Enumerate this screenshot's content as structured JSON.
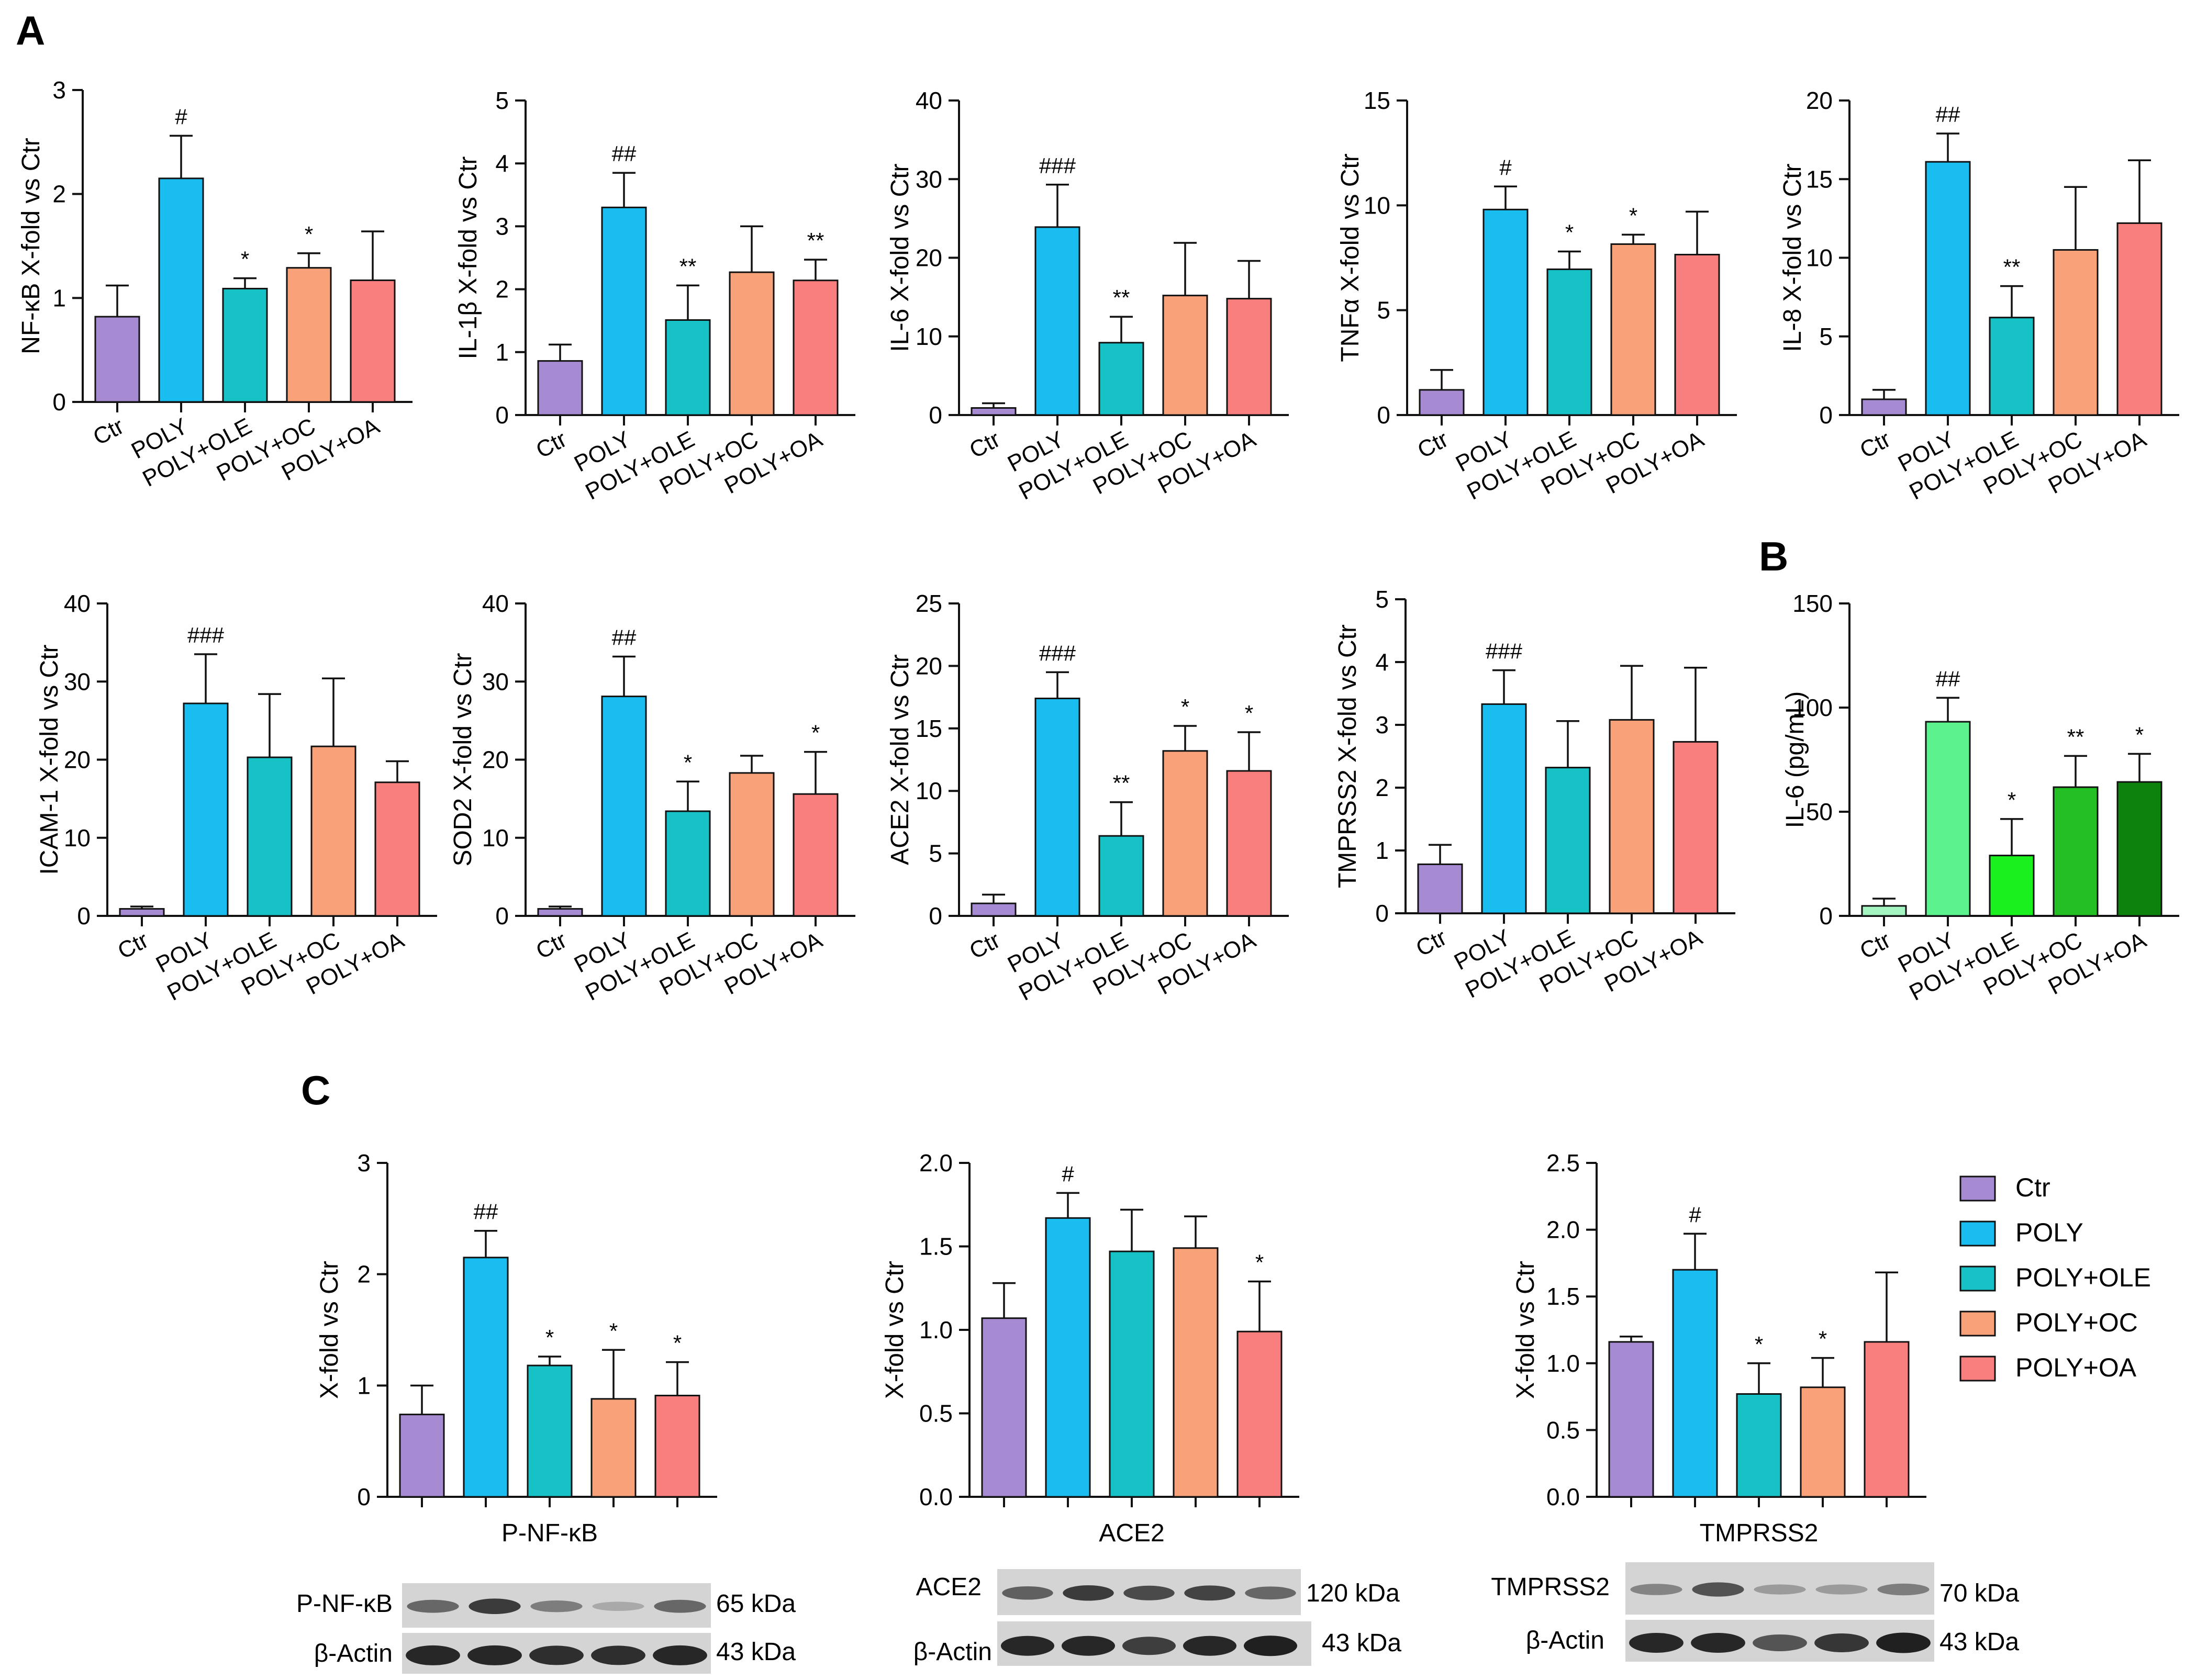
{
  "panel_labels": {
    "a": "A",
    "b": "B",
    "c": "C"
  },
  "group_labels": [
    "Ctr",
    "POLY",
    "POLY+OLE",
    "POLY+OC",
    "POLY+OA"
  ],
  "colors": {
    "main": [
      "#a68bd3",
      "#19bdf0",
      "#16c2c6",
      "#f9a27a",
      "#f97f7f"
    ],
    "panel_b": [
      "#a5f5c3",
      "#5cf28e",
      "#19f01e",
      "#24bf24",
      "#0d820d"
    ]
  },
  "legend": {
    "items": [
      {
        "label": "Ctr",
        "color": "#a68bd3"
      },
      {
        "label": "POLY",
        "color": "#19bdf0"
      },
      {
        "label": "POLY+OLE",
        "color": "#16c2c6"
      },
      {
        "label": "POLY+OC",
        "color": "#f9a27a"
      },
      {
        "label": "POLY+OA",
        "color": "#f97f7f"
      }
    ]
  },
  "chart_data": [
    {
      "id": "nfkb",
      "panel": "A",
      "type": "bar",
      "ylabel": "NF-κB X-fold vs Ctr",
      "ylim": [
        0,
        3
      ],
      "ticks": [
        "0",
        "1",
        "2",
        "3"
      ],
      "categories": [
        "Ctr",
        "POLY",
        "POLY+OLE",
        "POLY+OC",
        "POLY+OA"
      ],
      "values": [
        0.82,
        2.15,
        1.09,
        1.29,
        1.17
      ],
      "errors": [
        0.3,
        0.41,
        0.1,
        0.14,
        0.47
      ],
      "annotations": [
        "",
        "#",
        "*",
        "*",
        ""
      ]
    },
    {
      "id": "il1b",
      "panel": "A",
      "type": "bar",
      "ylabel": "IL-1β X-fold vs Ctr",
      "ylim": [
        0,
        5
      ],
      "ticks": [
        "0",
        "1",
        "2",
        "3",
        "4",
        "5"
      ],
      "categories": [
        "Ctr",
        "POLY",
        "POLY+OLE",
        "POLY+OC",
        "POLY+OA"
      ],
      "values": [
        0.86,
        3.3,
        1.51,
        2.27,
        2.14
      ],
      "errors": [
        0.26,
        0.55,
        0.55,
        0.73,
        0.33
      ],
      "annotations": [
        "",
        "##",
        "**",
        "",
        "**"
      ]
    },
    {
      "id": "il6",
      "panel": "A",
      "type": "bar",
      "ylabel": "IL-6 X-fold vs Ctr",
      "ylim": [
        0,
        40
      ],
      "ticks": [
        "0",
        "10",
        "20",
        "30",
        "40"
      ],
      "categories": [
        "Ctr",
        "POLY",
        "POLY+OLE",
        "POLY+OC",
        "POLY+OA"
      ],
      "values": [
        0.9,
        23.9,
        9.2,
        15.2,
        14.8
      ],
      "errors": [
        0.6,
        5.4,
        3.3,
        6.7,
        4.8
      ],
      "annotations": [
        "",
        "###",
        "**",
        "",
        ""
      ]
    },
    {
      "id": "tnfa",
      "panel": "A",
      "type": "bar",
      "ylabel": "TNFα X-fold vs Ctr",
      "ylim": [
        0,
        15
      ],
      "ticks": [
        "0",
        "5",
        "10",
        "15"
      ],
      "categories": [
        "Ctr",
        "POLY",
        "POLY+OLE",
        "POLY+OC",
        "POLY+OA"
      ],
      "values": [
        1.2,
        9.8,
        6.95,
        8.15,
        7.65
      ],
      "errors": [
        0.95,
        1.1,
        0.85,
        0.45,
        2.05
      ],
      "annotations": [
        "",
        "#",
        "*",
        "*",
        ""
      ]
    },
    {
      "id": "il8",
      "panel": "A",
      "type": "bar",
      "ylabel": "IL-8 X-fold vs Ctr",
      "ylim": [
        0,
        20
      ],
      "ticks": [
        "0",
        "5",
        "10",
        "15",
        "20"
      ],
      "categories": [
        "Ctr",
        "POLY",
        "POLY+OLE",
        "POLY+OC",
        "POLY+OA"
      ],
      "values": [
        1.0,
        16.1,
        6.2,
        10.5,
        12.2
      ],
      "errors": [
        0.6,
        1.8,
        2.0,
        4.0,
        4.0
      ],
      "annotations": [
        "",
        "##",
        "**",
        "",
        ""
      ]
    },
    {
      "id": "icam1",
      "panel": "A",
      "type": "bar",
      "ylabel": "ICAM-1 X-fold vs Ctr",
      "ylim": [
        0,
        40
      ],
      "ticks": [
        "0",
        "10",
        "20",
        "30",
        "40"
      ],
      "categories": [
        "Ctr",
        "POLY",
        "POLY+OLE",
        "POLY+OC",
        "POLY+OA"
      ],
      "values": [
        0.9,
        27.2,
        20.3,
        21.7,
        17.1
      ],
      "errors": [
        0.3,
        6.3,
        8.1,
        8.7,
        2.7
      ],
      "annotations": [
        "",
        "###",
        "",
        "",
        ""
      ]
    },
    {
      "id": "sod2",
      "panel": "A",
      "type": "bar",
      "ylabel": "SOD2 X-fold vs Ctr",
      "ylim": [
        0,
        40
      ],
      "ticks": [
        "0",
        "10",
        "20",
        "30",
        "40"
      ],
      "categories": [
        "Ctr",
        "POLY",
        "POLY+OLE",
        "POLY+OC",
        "POLY+OA"
      ],
      "values": [
        0.9,
        28.1,
        13.4,
        18.3,
        15.6
      ],
      "errors": [
        0.3,
        5.1,
        3.8,
        2.2,
        5.4
      ],
      "annotations": [
        "",
        "##",
        "*",
        "",
        "*"
      ]
    },
    {
      "id": "ace2_mrna",
      "panel": "A",
      "type": "bar",
      "ylabel": "ACE2 X-fold vs Ctr",
      "ylim": [
        0,
        25
      ],
      "ticks": [
        "0",
        "5",
        "10",
        "15",
        "20",
        "25"
      ],
      "categories": [
        "Ctr",
        "POLY",
        "POLY+OLE",
        "POLY+OC",
        "POLY+OA"
      ],
      "values": [
        1.0,
        17.4,
        6.4,
        13.2,
        11.6
      ],
      "errors": [
        0.7,
        2.1,
        2.7,
        2.0,
        3.1
      ],
      "annotations": [
        "",
        "###",
        "**",
        "*",
        "*"
      ]
    },
    {
      "id": "tmprss2_mrna",
      "panel": "A",
      "type": "bar",
      "ylabel": "TMPRSS2 X-fold vs Ctr",
      "ylim": [
        0,
        5
      ],
      "ticks": [
        "0",
        "1",
        "2",
        "3",
        "4",
        "5"
      ],
      "categories": [
        "Ctr",
        "POLY",
        "POLY+OLE",
        "POLY+OC",
        "POLY+OA"
      ],
      "values": [
        0.78,
        3.33,
        2.32,
        3.08,
        2.73
      ],
      "errors": [
        0.31,
        0.54,
        0.74,
        0.86,
        1.18
      ],
      "annotations": [
        "",
        "###",
        "",
        "",
        ""
      ]
    },
    {
      "id": "il6_elisa",
      "panel": "B",
      "type": "bar",
      "ylabel": "IL-6 (pg/mL)",
      "ylim": [
        0,
        150
      ],
      "ticks": [
        "0",
        "50",
        "100",
        "150"
      ],
      "categories": [
        "Ctr",
        "POLY",
        "POLY+OLE",
        "POLY+OC",
        "POLY+OA"
      ],
      "values": [
        4.8,
        93.2,
        29.0,
        61.8,
        64.3
      ],
      "errors": [
        3.5,
        11.5,
        17.5,
        15.0,
        13.5
      ],
      "annotations": [
        "",
        "##",
        "*",
        "**",
        "*"
      ]
    },
    {
      "id": "p_nfkb",
      "panel": "C",
      "type": "bar",
      "title": "P-NF-κB",
      "ylabel": "X-fold vs Ctr",
      "ylim": [
        0,
        3
      ],
      "ticks": [
        "0",
        "1",
        "2",
        "3"
      ],
      "categories": [
        "Ctr",
        "POLY",
        "POLY+OLE",
        "POLY+OC",
        "POLY+OA"
      ],
      "values": [
        0.74,
        2.15,
        1.18,
        0.88,
        0.91
      ],
      "errors": [
        0.26,
        0.24,
        0.08,
        0.44,
        0.3
      ],
      "annotations": [
        "",
        "##",
        "*",
        "*",
        "*"
      ]
    },
    {
      "id": "ace2_protein",
      "panel": "C",
      "type": "bar",
      "title": "ACE2",
      "ylabel": "X-fold vs Ctr",
      "ylim": [
        0,
        2.0
      ],
      "ticks": [
        "0.0",
        "0.5",
        "1.0",
        "1.5",
        "2.0"
      ],
      "categories": [
        "Ctr",
        "POLY",
        "POLY+OLE",
        "POLY+OC",
        "POLY+OA"
      ],
      "values": [
        1.07,
        1.67,
        1.47,
        1.49,
        0.99
      ],
      "errors": [
        0.21,
        0.15,
        0.25,
        0.19,
        0.3
      ],
      "annotations": [
        "",
        "#",
        "",
        "",
        "*"
      ]
    },
    {
      "id": "tmprss2_protein",
      "panel": "C",
      "type": "bar",
      "title": "TMPRSS2",
      "ylabel": "X-fold vs Ctr",
      "ylim": [
        0,
        2.5
      ],
      "ticks": [
        "0.0",
        "0.5",
        "1.0",
        "1.5",
        "2.0",
        "2.5"
      ],
      "categories": [
        "Ctr",
        "POLY",
        "POLY+OLE",
        "POLY+OC",
        "POLY+OA"
      ],
      "values": [
        1.16,
        1.7,
        0.77,
        0.82,
        1.16
      ],
      "errors": [
        0.04,
        0.27,
        0.23,
        0.22,
        0.52
      ],
      "annotations": [
        "",
        "#",
        "*",
        "*",
        ""
      ]
    }
  ],
  "blots": [
    {
      "id": "blot1",
      "target": "P-NF-κB",
      "target_kda": "65 kDa",
      "loading": "β-Actin",
      "loading_kda": "43 kDa",
      "target_intensity": [
        0.55,
        0.85,
        0.4,
        0.1,
        0.55
      ],
      "loading_intensity": [
        0.9,
        0.9,
        0.85,
        0.85,
        0.9
      ]
    },
    {
      "id": "blot2",
      "target": "ACE2",
      "target_kda": "120 kDa",
      "loading": "β-Actin",
      "loading_kda": "43 kDa",
      "target_intensity": [
        0.6,
        0.85,
        0.75,
        0.8,
        0.55
      ],
      "loading_intensity": [
        0.9,
        0.9,
        0.75,
        0.9,
        0.95
      ]
    },
    {
      "id": "blot3",
      "target": "TMPRSS2",
      "target_kda": "70 kDa",
      "loading": "β-Actin",
      "loading_kda": "43 kDa",
      "target_intensity": [
        0.35,
        0.7,
        0.2,
        0.2,
        0.4
      ],
      "loading_intensity": [
        0.9,
        0.9,
        0.6,
        0.8,
        0.95
      ]
    }
  ]
}
